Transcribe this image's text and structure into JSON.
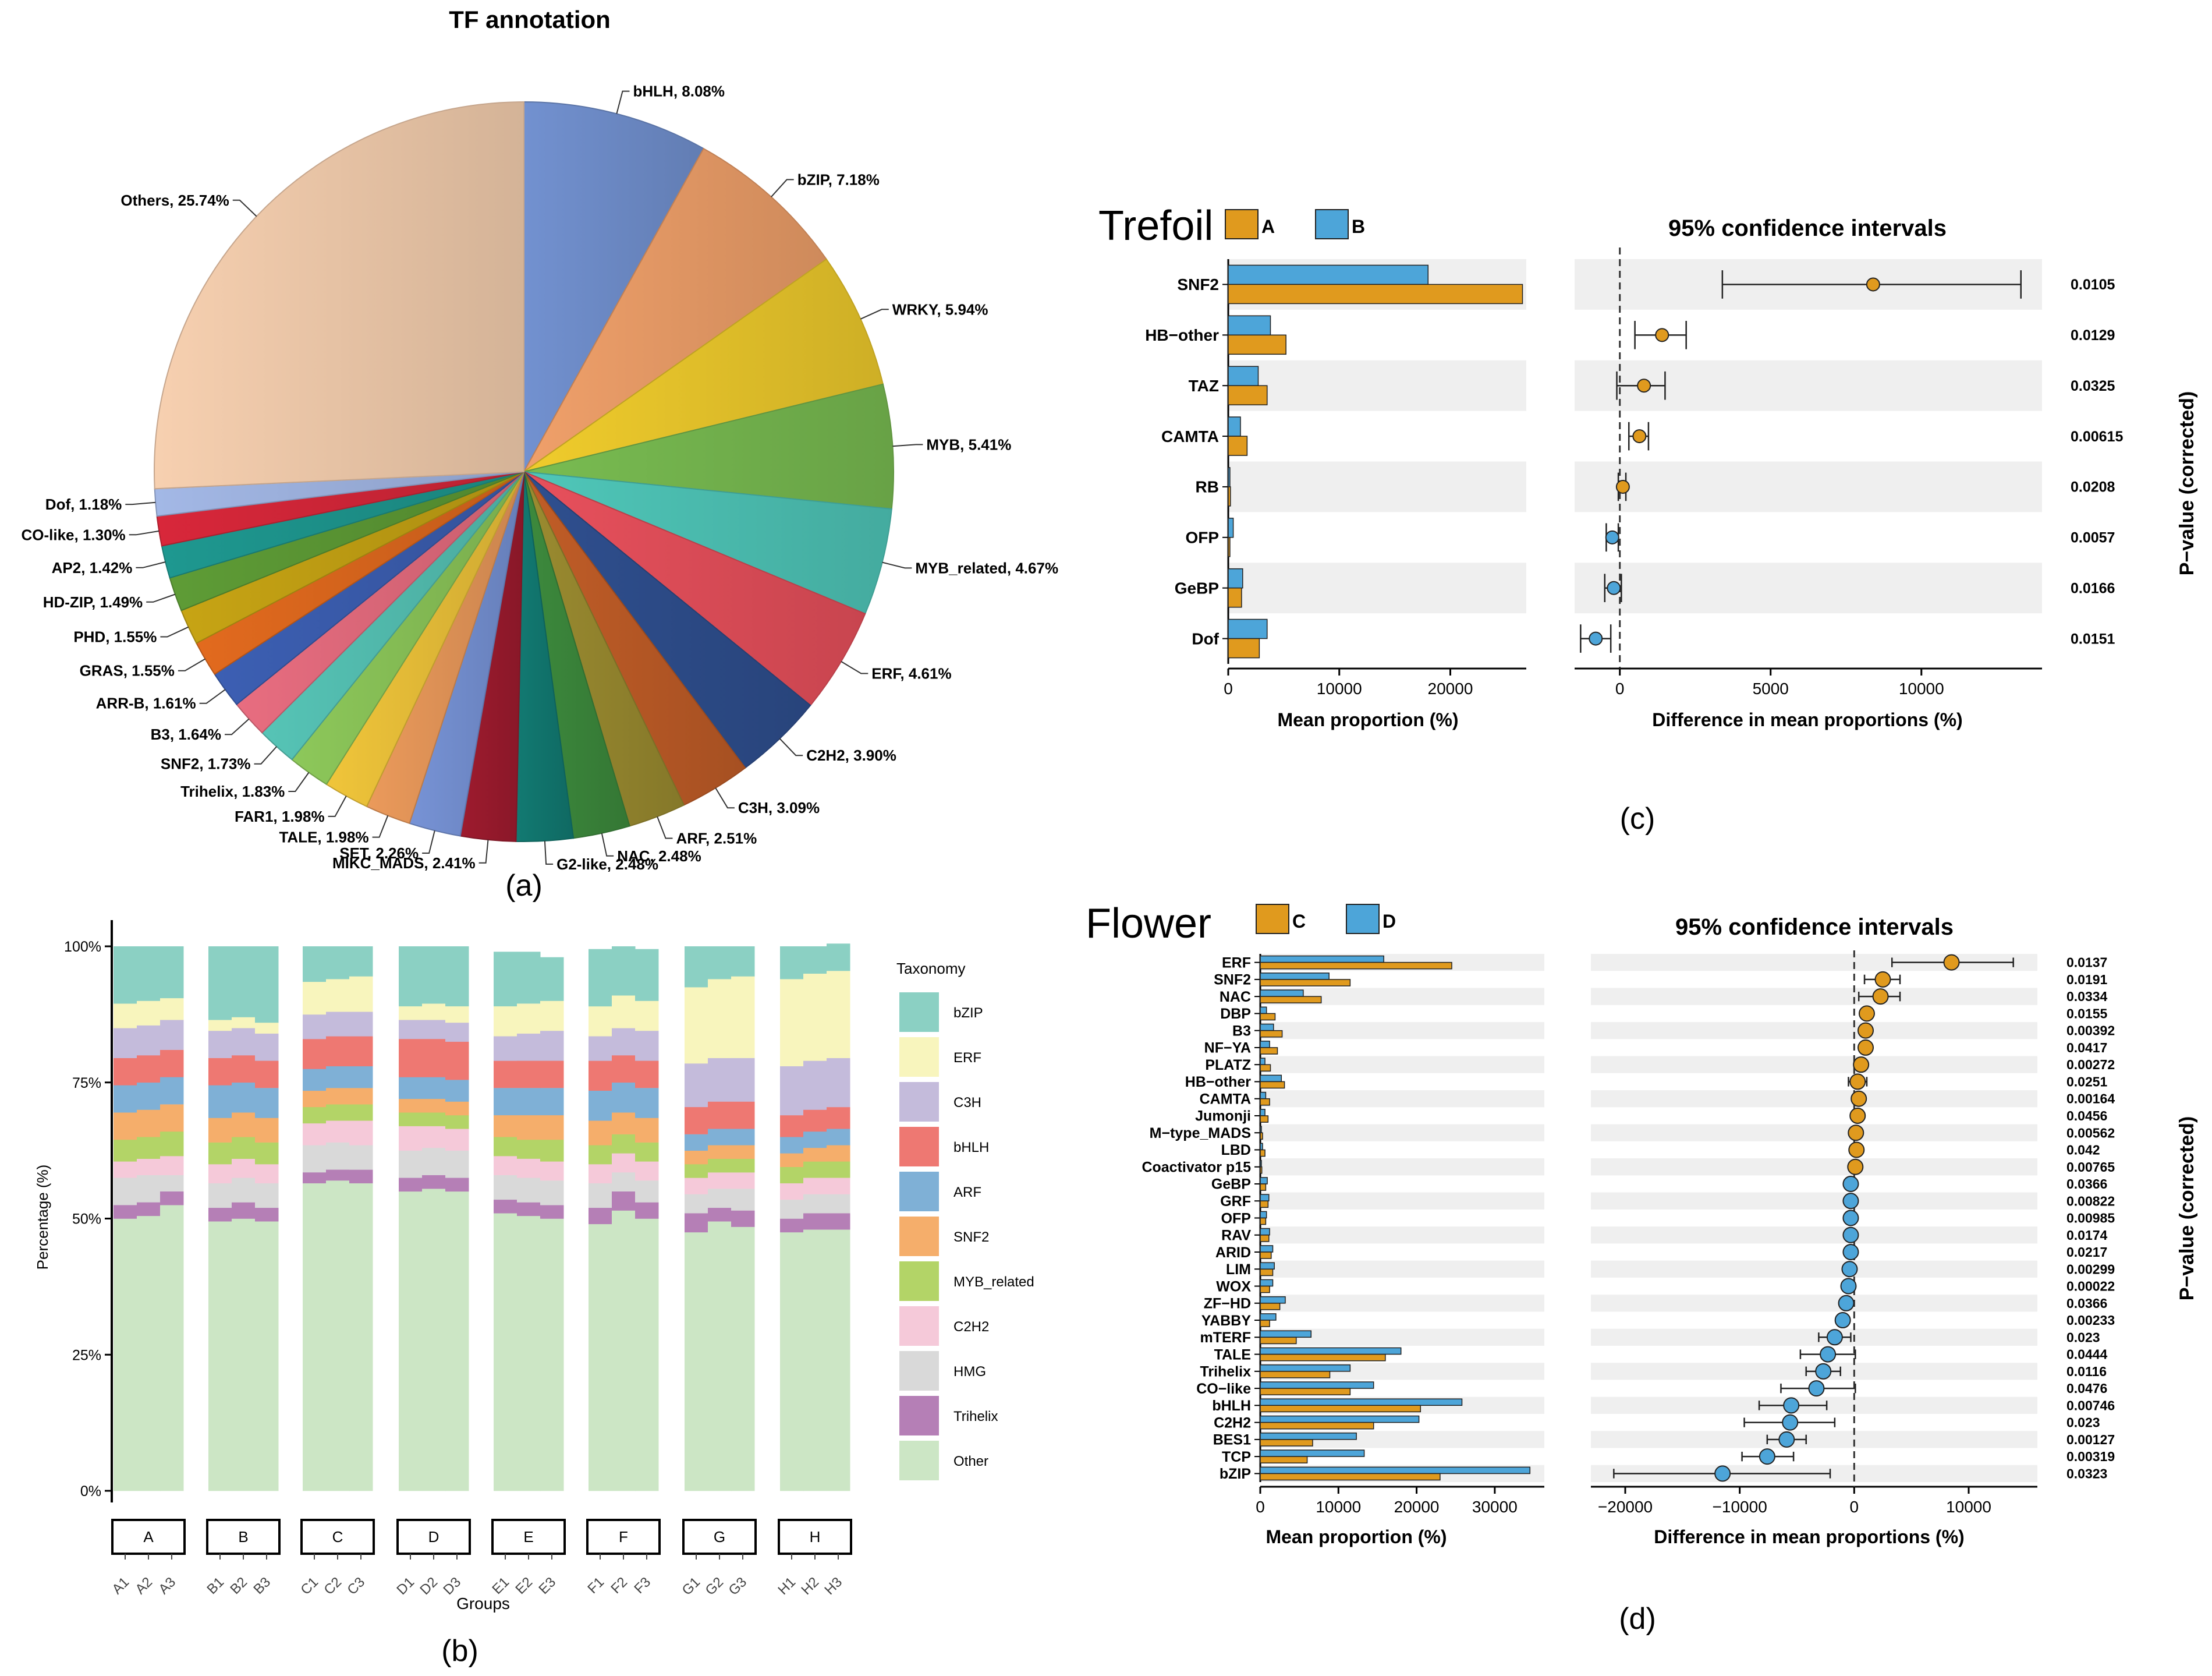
{
  "chart_data": [
    {
      "type": "pie",
      "panel_label": "(a)",
      "title": "TF annotation",
      "slices": [
        {
          "label": "bHLH, 8.08%",
          "value": 8.08,
          "color": "#7291d0"
        },
        {
          "label": "bZIP, 7.18%",
          "value": 7.18,
          "color": "#f0a06a"
        },
        {
          "label": "WRKY, 5.94%",
          "value": 5.94,
          "color": "#f0cc2c"
        },
        {
          "label": "MYB, 5.41%",
          "value": 5.41,
          "color": "#79bc51"
        },
        {
          "label": "MYB_related, 4.67%",
          "value": 4.67,
          "color": "#4fc7b9"
        },
        {
          "label": "ERF, 4.61%",
          "value": 4.61,
          "color": "#e8505c"
        },
        {
          "label": "C2H2, 3.90%",
          "value": 3.9,
          "color": "#2f4f8f"
        },
        {
          "label": "C3H, 3.09%",
          "value": 3.09,
          "color": "#c15d27"
        },
        {
          "label": "ARF, 2.51%",
          "value": 2.51,
          "color": "#9b8b30"
        },
        {
          "label": "NAC, 2.48%",
          "value": 2.48,
          "color": "#3d8a3d"
        },
        {
          "label": "G2-like, 2.48%",
          "value": 2.48,
          "color": "#127a72"
        },
        {
          "label": "MIKC_MADS, 2.41%",
          "value": 2.41,
          "color": "#9e1b2e"
        },
        {
          "label": "SET, 2.26%",
          "value": 2.26,
          "color": "#7793d6"
        },
        {
          "label": "TALE, 1.98%",
          "value": 1.98,
          "color": "#eb9a5b"
        },
        {
          "label": "FAR1, 1.98%",
          "value": 1.98,
          "color": "#f0c53a"
        },
        {
          "label": "Trihelix, 1.83%",
          "value": 1.83,
          "color": "#8dc85a"
        },
        {
          "label": "SNF2, 1.73%",
          "value": 1.73,
          "color": "#56c4b6"
        },
        {
          "label": "B3, 1.64%",
          "value": 1.64,
          "color": "#e86d80"
        },
        {
          "label": "ARR-B, 1.61%",
          "value": 1.61,
          "color": "#3c5fb3"
        },
        {
          "label": "GRAS, 1.55%",
          "value": 1.55,
          "color": "#e26a1e"
        },
        {
          "label": "PHD, 1.55%",
          "value": 1.55,
          "color": "#c7a414"
        },
        {
          "label": "HD-ZIP, 1.49%",
          "value": 1.49,
          "color": "#5e9c36"
        },
        {
          "label": "AP2, 1.42%",
          "value": 1.42,
          "color": "#1e9890"
        },
        {
          "label": "CO-like, 1.30%",
          "value": 1.3,
          "color": "#d8273a"
        },
        {
          "label": "Dof, 1.18%",
          "value": 1.18,
          "color": "#a3b8e6"
        },
        {
          "label": "Others, 25.74%",
          "value": 25.74,
          "color": "#f7d0b0"
        }
      ]
    },
    {
      "type": "stacked-bar",
      "panel_label": "(b)",
      "ylabel": "Percentage (%)",
      "xlabel": "Groups",
      "y_ticks": [
        "0%",
        "25%",
        "50%",
        "75%",
        "100%"
      ],
      "legend_title": "Taxonomy",
      "groups": [
        "A",
        "B",
        "C",
        "D",
        "E",
        "F",
        "G",
        "H"
      ],
      "samples": [
        "A1",
        "A2",
        "A3",
        "B1",
        "B2",
        "B3",
        "C1",
        "C2",
        "C3",
        "D1",
        "D2",
        "D3",
        "E1",
        "E2",
        "E3",
        "F1",
        "F2",
        "F3",
        "G1",
        "G2",
        "G3",
        "H1",
        "H2",
        "H3"
      ],
      "series": [
        {
          "name": "Other",
          "color": "#cce6c5",
          "values": [
            50.0,
            50.5,
            52.5,
            49.5,
            50.0,
            49.5,
            56.5,
            57.0,
            56.5,
            55.0,
            55.5,
            55.0,
            51.0,
            50.5,
            50.0,
            49.0,
            51.5,
            50.0,
            47.5,
            49.5,
            48.5,
            47.5,
            48.0,
            48.0
          ]
        },
        {
          "name": "Trihelix",
          "color": "#b57fb6",
          "values": [
            2.5,
            2.5,
            2.5,
            2.5,
            3.0,
            2.5,
            2.0,
            2.0,
            2.5,
            2.5,
            2.5,
            2.5,
            2.5,
            2.5,
            2.5,
            3.0,
            3.5,
            3.0,
            3.5,
            2.5,
            3.0,
            2.5,
            3.0,
            3.0
          ]
        },
        {
          "name": "HMG",
          "color": "#d9d9d9",
          "values": [
            5.0,
            5.0,
            3.0,
            4.5,
            4.5,
            4.5,
            5.0,
            5.0,
            4.5,
            5.0,
            5.0,
            5.0,
            4.5,
            4.5,
            4.5,
            4.5,
            3.5,
            4.0,
            3.5,
            3.5,
            4.0,
            3.5,
            3.5,
            3.5
          ]
        },
        {
          "name": "C2H2",
          "color": "#f5c9d9",
          "values": [
            3.0,
            3.0,
            3.5,
            3.5,
            3.5,
            3.5,
            4.0,
            4.0,
            4.5,
            4.5,
            4.0,
            4.0,
            3.5,
            3.5,
            3.5,
            3.5,
            3.5,
            3.5,
            3.0,
            3.0,
            3.0,
            3.0,
            3.0,
            3.0
          ]
        },
        {
          "name": "MYB_related",
          "color": "#b3d467",
          "values": [
            4.0,
            4.0,
            4.5,
            4.0,
            4.0,
            4.0,
            3.0,
            3.0,
            3.0,
            2.5,
            2.5,
            2.5,
            3.5,
            3.5,
            4.0,
            3.5,
            3.5,
            3.5,
            2.5,
            2.5,
            2.5,
            3.0,
            3.0,
            3.0
          ]
        },
        {
          "name": "SNF2",
          "color": "#f5ae6b",
          "values": [
            5.0,
            5.0,
            5.0,
            4.5,
            4.5,
            4.5,
            3.0,
            3.0,
            3.0,
            2.5,
            2.5,
            2.5,
            4.0,
            4.5,
            4.5,
            4.5,
            4.0,
            4.5,
            2.5,
            2.5,
            2.5,
            2.5,
            2.5,
            3.0
          ]
        },
        {
          "name": "ARF",
          "color": "#7fb0d6",
          "values": [
            5.0,
            5.0,
            5.0,
            6.0,
            5.5,
            5.5,
            4.0,
            4.0,
            4.0,
            4.0,
            4.0,
            4.0,
            5.0,
            5.0,
            5.0,
            5.5,
            5.5,
            5.5,
            3.0,
            3.0,
            3.0,
            3.0,
            3.0,
            3.0
          ]
        },
        {
          "name": "bHLH",
          "color": "#ee7872",
          "values": [
            5.0,
            5.0,
            5.0,
            5.0,
            5.0,
            5.0,
            5.5,
            5.5,
            5.5,
            7.0,
            7.0,
            7.0,
            5.0,
            5.0,
            5.0,
            5.5,
            5.0,
            5.0,
            5.0,
            5.0,
            5.0,
            4.0,
            4.0,
            4.0
          ]
        },
        {
          "name": "C3H",
          "color": "#c4bbdb",
          "values": [
            5.5,
            5.5,
            5.5,
            5.0,
            5.0,
            5.0,
            4.5,
            4.5,
            4.5,
            3.5,
            3.5,
            3.5,
            4.5,
            5.0,
            5.5,
            4.5,
            5.0,
            5.5,
            8.0,
            8.0,
            8.0,
            9.0,
            9.0,
            9.0
          ]
        },
        {
          "name": "ERF",
          "color": "#f8f5bd",
          "values": [
            4.5,
            4.5,
            4.0,
            2.0,
            2.0,
            2.0,
            6.0,
            6.0,
            6.5,
            2.5,
            3.0,
            3.0,
            5.5,
            5.5,
            5.5,
            5.5,
            6.0,
            5.5,
            14.0,
            14.5,
            15.0,
            16.0,
            16.0,
            16.0
          ]
        },
        {
          "name": "bZIP",
          "color": "#8bd0c3",
          "values": [
            10.5,
            10.0,
            9.5,
            13.5,
            13.0,
            14.0,
            6.5,
            6.0,
            5.5,
            11.0,
            10.5,
            11.0,
            10.0,
            9.5,
            8.0,
            10.5,
            9.0,
            9.5,
            7.5,
            6.0,
            5.5,
            6.0,
            5.0,
            5.0
          ]
        }
      ]
    },
    {
      "type": "bar-errorbar",
      "panel_label": "(c)",
      "title": "Trefoil",
      "legend": [
        {
          "name": "A",
          "color": "#e09a1e"
        },
        {
          "name": "B",
          "color": "#4da5d9"
        }
      ],
      "ci_title": "95% confidence intervals",
      "xlabel_left": "Mean proportion (%)",
      "xlabel_right": "Difference in mean proportions (%)",
      "ylabel_right": "P−value (corrected)",
      "left_xlim": [
        0,
        27000
      ],
      "left_ticks": [
        "0",
        "10000",
        "20000"
      ],
      "right_xlim": [
        -1500,
        14000
      ],
      "right_ticks": [
        "0",
        "5000",
        "10000"
      ],
      "features": [
        "SNF2",
        "HB−other",
        "TAZ",
        "CAMTA",
        "RB",
        "OFP",
        "GeBP",
        "Dof"
      ],
      "series_A": [
        26500,
        5200,
        3500,
        1700,
        200,
        150,
        1200,
        2800
      ],
      "series_B": [
        18000,
        3800,
        2700,
        1100,
        150,
        450,
        1300,
        3500
      ],
      "diff": [
        8400,
        1400,
        800,
        650,
        100,
        -250,
        -200,
        -800
      ],
      "ci_low": [
        3400,
        500,
        -100,
        300,
        -50,
        -450,
        -500,
        -1300
      ],
      "ci_high": [
        13300,
        2200,
        1500,
        950,
        200,
        -50,
        50,
        -300
      ],
      "pvalues": [
        "0.0105",
        "0.0129",
        "0.0325",
        "0.00615",
        "0.0208",
        "0.0057",
        "0.0166",
        "0.0151"
      ]
    },
    {
      "type": "bar-errorbar",
      "panel_label": "(d)",
      "title": "Flower",
      "legend": [
        {
          "name": "C",
          "color": "#e09a1e"
        },
        {
          "name": "D",
          "color": "#4da5d9"
        }
      ],
      "ci_title": "95% confidence intervals",
      "xlabel_left": "Mean proportion (%)",
      "xlabel_right": "Difference in mean proportions (%)",
      "ylabel_right": "P−value (corrected)",
      "left_xlim": [
        0,
        35000
      ],
      "left_ticks": [
        "0",
        "10000",
        "20000",
        "30000"
      ],
      "right_xlim": [
        -23000,
        16000
      ],
      "right_ticks": [
        "−20000",
        "−10000",
        "0",
        "10000"
      ],
      "features": [
        "ERF",
        "SNF2",
        "NAC",
        "DBP",
        "B3",
        "NF−YA",
        "PLATZ",
        "HB−other",
        "CAMTA",
        "Jumonji",
        "M−type_MADS",
        "LBD",
        "Coactivator p15",
        "GeBP",
        "GRF",
        "OFP",
        "RAV",
        "ARID",
        "LIM",
        "WOX",
        "ZF−HD",
        "YABBY",
        "mTERF",
        "TALE",
        "Trihelix",
        "CO−like",
        "bHLH",
        "C2H2",
        "BES1",
        "TCP",
        "bZIP"
      ],
      "series_C": [
        24500,
        11500,
        7800,
        1900,
        2800,
        2200,
        1300,
        3100,
        1200,
        1000,
        300,
        600,
        200,
        700,
        1000,
        700,
        1100,
        1400,
        1600,
        1200,
        2500,
        1200,
        4600,
        16000,
        8900,
        11500,
        20500,
        14500,
        6700,
        6000,
        23000
      ],
      "series_D": [
        15800,
        8800,
        5500,
        800,
        1700,
        1200,
        600,
        2700,
        700,
        600,
        150,
        300,
        150,
        900,
        1100,
        800,
        1200,
        1600,
        1800,
        1600,
        3200,
        2000,
        6500,
        18000,
        11500,
        14500,
        25800,
        20300,
        12300,
        13300,
        34500
      ],
      "diff": [
        8500,
        2500,
        2300,
        1100,
        1000,
        1000,
        600,
        300,
        400,
        300,
        150,
        200,
        100,
        -300,
        -300,
        -300,
        -300,
        -300,
        -400,
        -500,
        -700,
        -1000,
        -1700,
        -2300,
        -2700,
        -3300,
        -5500,
        -5600,
        -5900,
        -7600,
        -11500
      ],
      "ci_low": [
        3300,
        900,
        400,
        700,
        700,
        500,
        300,
        -500,
        100,
        0,
        0,
        0,
        0,
        -600,
        -600,
        -600,
        -600,
        -700,
        -800,
        -800,
        -1000,
        -1400,
        -3100,
        -4700,
        -4200,
        -6400,
        -8300,
        -9600,
        -7600,
        -9800,
        -21000
      ],
      "ci_high": [
        13900,
        4000,
        4000,
        1500,
        1300,
        1500,
        900,
        1100,
        700,
        600,
        300,
        400,
        200,
        0,
        0,
        0,
        0,
        100,
        0,
        -200,
        -400,
        -600,
        -300,
        100,
        -1200,
        100,
        -2400,
        -1700,
        -4200,
        -5300,
        -2100
      ],
      "pvalues": [
        "0.0137",
        "0.0191",
        "0.0334",
        "0.0155",
        "0.00392",
        "0.0417",
        "0.00272",
        "0.0251",
        "0.00164",
        "0.0456",
        "0.00562",
        "0.042",
        "0.00765",
        "0.0366",
        "0.00822",
        "0.00985",
        "0.0174",
        "0.0217",
        "0.00299",
        "0.00022",
        "0.0366",
        "0.00233",
        "0.023",
        "0.0444",
        "0.0116",
        "0.0476",
        "0.00746",
        "0.023",
        "0.00127",
        "0.00319",
        "0.0323"
      ]
    }
  ]
}
